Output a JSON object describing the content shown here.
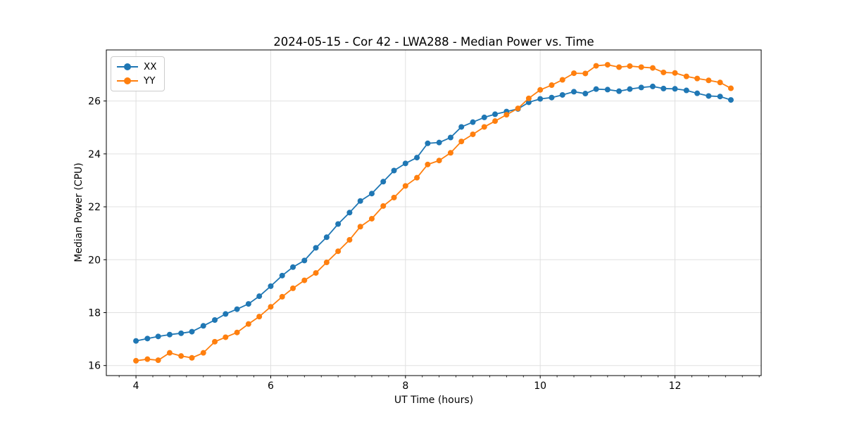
{
  "figure": {
    "background": "#ffffff",
    "text_color": "#000000"
  },
  "chart_data": {
    "type": "line",
    "title": "2024-05-15 - Cor 42 - LWA288 - Median Power vs. Time",
    "xlabel": "UT Time (hours)",
    "ylabel": "Median Power (CPU)",
    "xlim": [
      3.56,
      13.28
    ],
    "ylim": [
      15.62,
      27.93
    ],
    "xticks": [
      4,
      6,
      8,
      10,
      12
    ],
    "yticks": [
      16,
      18,
      20,
      22,
      24,
      26
    ],
    "x_minor_tick_step": 0.25,
    "grid": true,
    "grid_color": "#e0e0e0",
    "spine_color": "#000000",
    "legend_position": "upper-left",
    "x": [
      4.0,
      4.17,
      4.33,
      4.5,
      4.67,
      4.83,
      5.0,
      5.17,
      5.33,
      5.5,
      5.67,
      5.83,
      6.0,
      6.17,
      6.33,
      6.5,
      6.67,
      6.83,
      7.0,
      7.17,
      7.33,
      7.5,
      7.67,
      7.83,
      8.0,
      8.17,
      8.33,
      8.5,
      8.67,
      8.83,
      9.0,
      9.17,
      9.33,
      9.5,
      9.67,
      9.83,
      10.0,
      10.17,
      10.33,
      10.5,
      10.67,
      10.83,
      11.0,
      11.17,
      11.33,
      11.5,
      11.67,
      11.83,
      12.0,
      12.17,
      12.33,
      12.5,
      12.67,
      12.83
    ],
    "series": [
      {
        "name": "XX",
        "color": "#1f77b4",
        "marker": "circle",
        "values": [
          16.93,
          17.02,
          17.1,
          17.17,
          17.22,
          17.28,
          17.5,
          17.72,
          17.95,
          18.13,
          18.33,
          18.62,
          19.0,
          19.4,
          19.72,
          19.97,
          20.45,
          20.85,
          21.35,
          21.78,
          22.22,
          22.5,
          22.95,
          23.37,
          23.64,
          23.86,
          24.4,
          24.43,
          24.62,
          25.02,
          25.2,
          25.38,
          25.5,
          25.6,
          25.7,
          25.95,
          26.08,
          26.13,
          26.23,
          26.35,
          26.28,
          26.45,
          26.43,
          26.37,
          26.45,
          26.51,
          26.55,
          26.47,
          26.46,
          26.4,
          26.29,
          26.19,
          26.17,
          26.04
        ]
      },
      {
        "name": "YY",
        "color": "#ff7f0e",
        "marker": "circle",
        "values": [
          16.18,
          16.24,
          16.2,
          16.48,
          16.36,
          16.29,
          16.48,
          16.9,
          17.07,
          17.25,
          17.57,
          17.85,
          18.22,
          18.6,
          18.92,
          19.22,
          19.5,
          19.9,
          20.32,
          20.75,
          21.25,
          21.55,
          22.03,
          22.35,
          22.79,
          23.1,
          23.6,
          23.75,
          24.04,
          24.47,
          24.74,
          25.02,
          25.24,
          25.48,
          25.72,
          26.1,
          26.42,
          26.6,
          26.8,
          27.05,
          27.04,
          27.33,
          27.37,
          27.28,
          27.32,
          27.28,
          27.25,
          27.08,
          27.06,
          26.93,
          26.85,
          26.78,
          26.7,
          26.48
        ]
      }
    ]
  }
}
